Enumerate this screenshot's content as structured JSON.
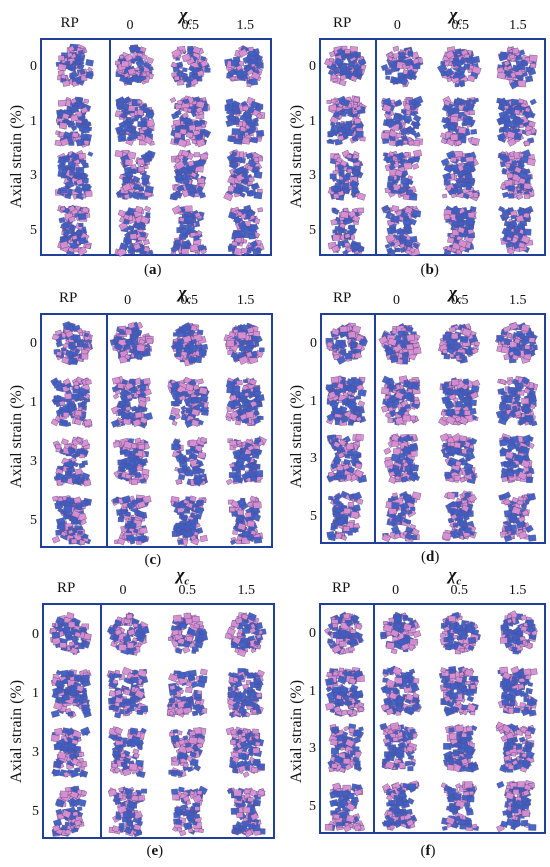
{
  "figure": {
    "chi_symbol": "χ",
    "chi_subscript": "c",
    "panels": [
      {
        "caption_letter": "a",
        "reference_label": "RP",
        "columns": [
          "0",
          "0.5",
          "1.5"
        ],
        "rows": [
          "0",
          "1",
          "3",
          "5"
        ],
        "ylabel": "Axial strain (%)"
      },
      {
        "caption_letter": "b",
        "reference_label": "RP",
        "columns": [
          "0",
          "0.5",
          "1.5"
        ],
        "rows": [
          "0",
          "1",
          "3",
          "5"
        ],
        "ylabel": "Axial strain (%)"
      },
      {
        "caption_letter": "c",
        "reference_label": "RP",
        "columns": [
          "0",
          "0.5",
          "1.5"
        ],
        "rows": [
          "0",
          "1",
          "3",
          "5"
        ],
        "ylabel": "Axial strain (%)"
      },
      {
        "caption_letter": "d",
        "reference_label": "RP",
        "columns": [
          "0",
          "0.5",
          "1.5"
        ],
        "rows": [
          "0",
          "1",
          "3",
          "5"
        ],
        "ylabel": "Axial strain (%)"
      },
      {
        "caption_letter": "e",
        "reference_label": "RP",
        "columns": [
          "0",
          "0.5",
          "1.5"
        ],
        "rows": [
          "0",
          "1",
          "3",
          "5"
        ],
        "ylabel": "Axial strain (%)"
      },
      {
        "caption_letter": "f",
        "reference_label": "RP",
        "columns": [
          "0",
          "0.5",
          "1.5"
        ],
        "rows": [
          "0",
          "1",
          "3",
          "5"
        ],
        "ylabel": "Axial strain (%)"
      }
    ],
    "colors": {
      "frame": "#1f3f9a",
      "grain_light": "#d98fd0",
      "grain_dark": "#3d5fc4"
    }
  }
}
